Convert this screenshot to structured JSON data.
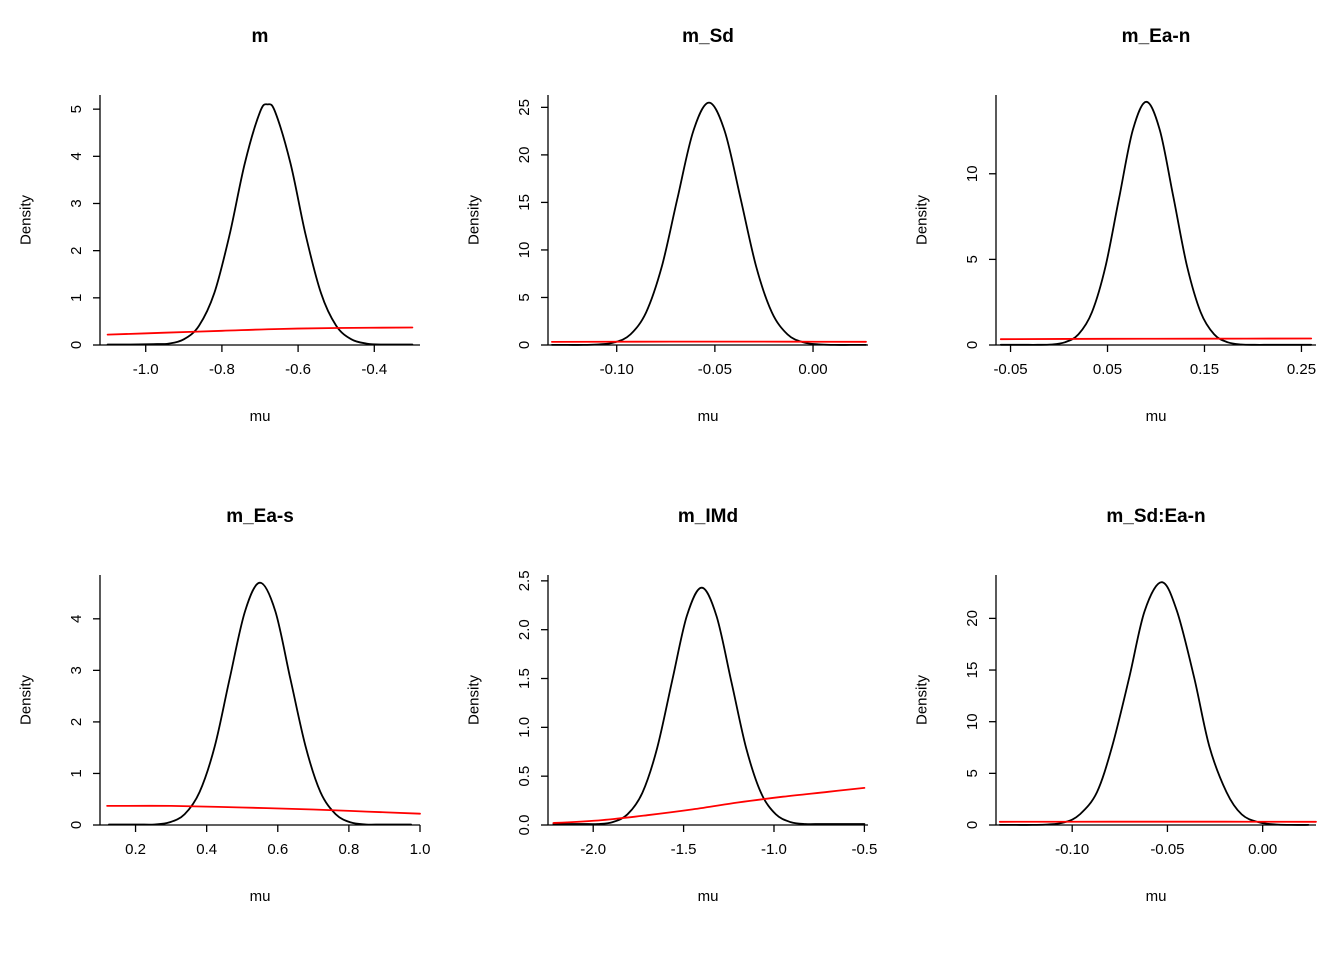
{
  "figure": {
    "rows": 2,
    "cols": 3,
    "background": "#ffffff"
  },
  "colors": {
    "posterior_curve": "#000000",
    "prior_curve": "#ff0000",
    "axis": "#000000"
  },
  "chart_data": [
    {
      "type": "line",
      "title": "m",
      "xlabel": "mu",
      "ylabel": "Density",
      "xlim": [
        -1.12,
        -0.28
      ],
      "ylim": [
        0,
        5.3
      ],
      "xticks": [
        -1.0,
        -0.8,
        -0.6,
        -0.4
      ],
      "xtick_labels": [
        "-1.0",
        "-0.8",
        "-0.6",
        "-0.4"
      ],
      "yticks": [
        0,
        1,
        2,
        3,
        4,
        5
      ],
      "ytick_labels": [
        "0",
        "1",
        "2",
        "3",
        "4",
        "5"
      ],
      "series": [
        {
          "name": "posterior_density",
          "color": "#000000",
          "points": [
            [
              -1.1,
              0.01
            ],
            [
              -1.04,
              0.01
            ],
            [
              -0.98,
              0.02
            ],
            [
              -0.94,
              0.03
            ],
            [
              -0.9,
              0.12
            ],
            [
              -0.86,
              0.41
            ],
            [
              -0.82,
              1.1
            ],
            [
              -0.78,
              2.33
            ],
            [
              -0.74,
              3.85
            ],
            [
              -0.7,
              4.94
            ],
            [
              -0.68,
              5.1
            ],
            [
              -0.66,
              4.94
            ],
            [
              -0.62,
              3.85
            ],
            [
              -0.58,
              2.33
            ],
            [
              -0.54,
              1.1
            ],
            [
              -0.5,
              0.41
            ],
            [
              -0.46,
              0.12
            ],
            [
              -0.42,
              0.03
            ],
            [
              -0.38,
              0.01
            ],
            [
              -0.32,
              0.01
            ],
            [
              -0.3,
              0.01
            ]
          ]
        },
        {
          "name": "prior_density",
          "color": "#ff0000",
          "points": [
            [
              -1.1,
              0.22
            ],
            [
              -0.95,
              0.26
            ],
            [
              -0.8,
              0.3
            ],
            [
              -0.65,
              0.34
            ],
            [
              -0.5,
              0.36
            ],
            [
              -0.3,
              0.37
            ]
          ]
        }
      ]
    },
    {
      "type": "line",
      "title": "m_Sd",
      "xlabel": "mu",
      "ylabel": "Density",
      "xlim": [
        -0.135,
        0.028
      ],
      "ylim": [
        0,
        26.3
      ],
      "xticks": [
        -0.1,
        -0.05,
        0.0
      ],
      "xtick_labels": [
        "-0.10",
        "-0.05",
        "0.00"
      ],
      "yticks": [
        0,
        5,
        10,
        15,
        20,
        25
      ],
      "ytick_labels": [
        "0",
        "5",
        "10",
        "15",
        "20",
        "25"
      ],
      "series": [
        {
          "name": "posterior_density",
          "color": "#000000",
          "points": [
            [
              -0.133,
              0.01
            ],
            [
              -0.125,
              0.01
            ],
            [
              -0.117,
              0.01
            ],
            [
              -0.109,
              0.06
            ],
            [
              -0.101,
              0.28
            ],
            [
              -0.093,
              1.12
            ],
            [
              -0.085,
              3.45
            ],
            [
              -0.077,
              8.28
            ],
            [
              -0.069,
              15.5
            ],
            [
              -0.061,
              22.5
            ],
            [
              -0.053,
              25.5
            ],
            [
              -0.045,
              22.5
            ],
            [
              -0.037,
              15.5
            ],
            [
              -0.029,
              8.28
            ],
            [
              -0.021,
              3.45
            ],
            [
              -0.013,
              1.12
            ],
            [
              -0.005,
              0.28
            ],
            [
              0.003,
              0.06
            ],
            [
              0.011,
              0.01
            ],
            [
              0.019,
              0.01
            ],
            [
              0.027,
              0.01
            ]
          ]
        },
        {
          "name": "prior_density",
          "color": "#ff0000",
          "points": [
            [
              -0.133,
              0.33
            ],
            [
              -0.09,
              0.35
            ],
            [
              -0.053,
              0.36
            ],
            [
              -0.01,
              0.35
            ],
            [
              0.027,
              0.34
            ]
          ]
        }
      ]
    },
    {
      "type": "line",
      "title": "m_Ea-n",
      "xlabel": "mu",
      "ylabel": "Density",
      "xlim": [
        -0.065,
        0.265
      ],
      "ylim": [
        0,
        14.6
      ],
      "xticks": [
        -0.05,
        0.05,
        0.15,
        0.25
      ],
      "xtick_labels": [
        "-0.05",
        "0.05",
        "0.15",
        "0.25"
      ],
      "yticks": [
        0,
        5,
        10
      ],
      "ytick_labels": [
        "0",
        "5",
        "10"
      ],
      "series": [
        {
          "name": "posterior_density",
          "color": "#000000",
          "points": [
            [
              -0.06,
              0.01
            ],
            [
              -0.05,
              0.01
            ],
            [
              -0.036,
              0.01
            ],
            [
              -0.022,
              0.01
            ],
            [
              -0.008,
              0.03
            ],
            [
              0.006,
              0.16
            ],
            [
              0.02,
              0.62
            ],
            [
              0.034,
              1.92
            ],
            [
              0.048,
              4.61
            ],
            [
              0.062,
              8.61
            ],
            [
              0.076,
              12.53
            ],
            [
              0.09,
              14.2
            ],
            [
              0.104,
              12.53
            ],
            [
              0.118,
              8.61
            ],
            [
              0.132,
              4.61
            ],
            [
              0.146,
              1.92
            ],
            [
              0.16,
              0.62
            ],
            [
              0.174,
              0.16
            ],
            [
              0.188,
              0.03
            ],
            [
              0.202,
              0.01
            ],
            [
              0.216,
              0.01
            ],
            [
              0.23,
              0.01
            ],
            [
              0.245,
              0.01
            ],
            [
              0.26,
              0.01
            ]
          ]
        },
        {
          "name": "prior_density",
          "color": "#ff0000",
          "points": [
            [
              -0.06,
              0.34
            ],
            [
              0.05,
              0.36
            ],
            [
              0.15,
              0.37
            ],
            [
              0.26,
              0.38
            ]
          ]
        }
      ]
    },
    {
      "type": "line",
      "title": "m_Ea-s",
      "xlabel": "mu",
      "ylabel": "Density",
      "xlim": [
        0.1,
        1.0
      ],
      "ylim": [
        0,
        4.85
      ],
      "xticks": [
        0.2,
        0.4,
        0.6,
        0.8,
        1.0
      ],
      "xtick_labels": [
        "0.2",
        "0.4",
        "0.6",
        "0.8",
        "1.0"
      ],
      "yticks": [
        0,
        1,
        2,
        3,
        4
      ],
      "ytick_labels": [
        "0",
        "1",
        "2",
        "3",
        "4"
      ],
      "series": [
        {
          "name": "posterior_density",
          "color": "#000000",
          "points": [
            [
              0.125,
              0.01
            ],
            [
              0.168,
              0.01
            ],
            [
              0.21,
              0.01
            ],
            [
              0.253,
              0.01
            ],
            [
              0.295,
              0.05
            ],
            [
              0.338,
              0.21
            ],
            [
              0.38,
              0.64
            ],
            [
              0.423,
              1.53
            ],
            [
              0.465,
              2.85
            ],
            [
              0.508,
              4.15
            ],
            [
              0.55,
              4.7
            ],
            [
              0.593,
              4.15
            ],
            [
              0.635,
              2.85
            ],
            [
              0.678,
              1.53
            ],
            [
              0.72,
              0.64
            ],
            [
              0.763,
              0.21
            ],
            [
              0.805,
              0.05
            ],
            [
              0.848,
              0.01
            ],
            [
              0.89,
              0.01
            ],
            [
              0.933,
              0.01
            ],
            [
              0.975,
              0.01
            ]
          ]
        },
        {
          "name": "prior_density",
          "color": "#ff0000",
          "points": [
            [
              0.12,
              0.37
            ],
            [
              0.3,
              0.37
            ],
            [
              0.5,
              0.34
            ],
            [
              0.7,
              0.3
            ],
            [
              0.85,
              0.26
            ],
            [
              1.0,
              0.22
            ]
          ]
        }
      ]
    },
    {
      "type": "line",
      "title": "m_IMd",
      "xlabel": "mu",
      "ylabel": "Density",
      "xlim": [
        -2.25,
        -0.48
      ],
      "ylim": [
        0,
        2.56
      ],
      "xticks": [
        -2.0,
        -1.5,
        -1.0,
        -0.5
      ],
      "xtick_labels": [
        "-2.0",
        "-1.5",
        "-1.0",
        "-0.5"
      ],
      "yticks": [
        0.0,
        0.5,
        1.0,
        1.5,
        2.0,
        2.5
      ],
      "ytick_labels": [
        "0.0",
        "0.5",
        "1.0",
        "1.5",
        "2.0",
        "2.5"
      ],
      "series": [
        {
          "name": "posterior_density",
          "color": "#000000",
          "points": [
            [
              -2.22,
              0.01
            ],
            [
              -2.138,
              0.01
            ],
            [
              -2.056,
              0.01
            ],
            [
              -1.974,
              0.01
            ],
            [
              -1.892,
              0.03
            ],
            [
              -1.81,
              0.11
            ],
            [
              -1.728,
              0.33
            ],
            [
              -1.646,
              0.79
            ],
            [
              -1.564,
              1.47
            ],
            [
              -1.482,
              2.14
            ],
            [
              -1.4,
              2.43
            ],
            [
              -1.318,
              2.14
            ],
            [
              -1.236,
              1.47
            ],
            [
              -1.154,
              0.79
            ],
            [
              -1.072,
              0.33
            ],
            [
              -0.99,
              0.11
            ],
            [
              -0.908,
              0.03
            ],
            [
              -0.826,
              0.01
            ],
            [
              -0.744,
              0.01
            ],
            [
              -0.662,
              0.01
            ],
            [
              -0.58,
              0.01
            ],
            [
              -0.5,
              0.01
            ]
          ]
        },
        {
          "name": "prior_density",
          "color": "#ff0000",
          "points": [
            [
              -2.22,
              0.02
            ],
            [
              -1.95,
              0.05
            ],
            [
              -1.7,
              0.1
            ],
            [
              -1.45,
              0.16
            ],
            [
              -1.2,
              0.23
            ],
            [
              -0.95,
              0.29
            ],
            [
              -0.7,
              0.34
            ],
            [
              -0.5,
              0.38
            ]
          ]
        }
      ]
    },
    {
      "type": "line",
      "title": "m_Sd:Ea-n",
      "xlabel": "mu",
      "ylabel": "Density",
      "xlim": [
        -0.14,
        0.028
      ],
      "ylim": [
        0,
        24.2
      ],
      "xticks": [
        -0.1,
        -0.05,
        0.0
      ],
      "xtick_labels": [
        "-0.10",
        "-0.05",
        "0.00"
      ],
      "yticks": [
        0,
        5,
        10,
        15,
        20
      ],
      "ytick_labels": [
        "0",
        "5",
        "10",
        "15",
        "20"
      ],
      "series": [
        {
          "name": "posterior_density",
          "color": "#000000",
          "points": [
            [
              -0.138,
              0.01
            ],
            [
              -0.13,
              0.01
            ],
            [
              -0.121,
              0.01
            ],
            [
              -0.113,
              0.05
            ],
            [
              -0.104,
              0.26
            ],
            [
              -0.096,
              1.03
            ],
            [
              -0.087,
              3.18
            ],
            [
              -0.079,
              7.63
            ],
            [
              -0.07,
              14.3
            ],
            [
              -0.062,
              20.7
            ],
            [
              -0.053,
              23.5
            ],
            [
              -0.045,
              20.7
            ],
            [
              -0.036,
              14.3
            ],
            [
              -0.028,
              7.63
            ],
            [
              -0.019,
              3.18
            ],
            [
              -0.011,
              1.03
            ],
            [
              -0.002,
              0.26
            ],
            [
              0.007,
              0.05
            ],
            [
              0.015,
              0.01
            ],
            [
              0.024,
              0.01
            ]
          ]
        },
        {
          "name": "prior_density",
          "color": "#ff0000",
          "points": [
            [
              -0.138,
              0.31
            ],
            [
              -0.08,
              0.32
            ],
            [
              -0.02,
              0.32
            ],
            [
              0.028,
              0.31
            ]
          ]
        }
      ]
    }
  ]
}
